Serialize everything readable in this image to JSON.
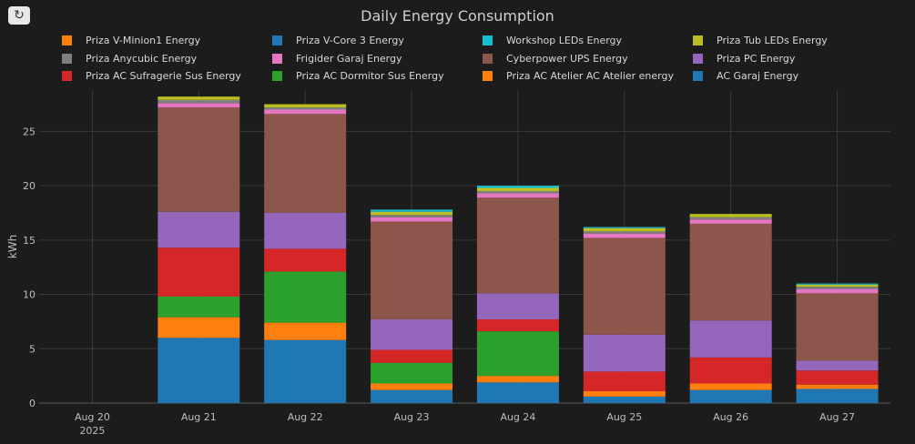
{
  "toolbar": {
    "refresh_icon": "↻"
  },
  "chart_data": {
    "type": "bar",
    "stacked": true,
    "title": "Daily Energy Consumption",
    "ylabel": "kWh",
    "xlabel": "",
    "ylim": [
      0,
      28.8
    ],
    "yticks": [
      0,
      5,
      10,
      15,
      20,
      25
    ],
    "grid": true,
    "legend_position": "top",
    "categories": [
      "Aug 20",
      "Aug 21",
      "Aug 22",
      "Aug 23",
      "Aug 24",
      "Aug 25",
      "Aug 26",
      "Aug 27"
    ],
    "category_sublabels": [
      "2025",
      "",
      "",
      "",
      "",
      "",
      "",
      ""
    ],
    "legend": [
      {
        "name": "Priza V-Minion1 Energy",
        "color": "#ff7f0e"
      },
      {
        "name": "Priza V-Core 3 Energy",
        "color": "#1f77b4"
      },
      {
        "name": "Workshop LEDs Energy",
        "color": "#17becf"
      },
      {
        "name": "Priza Tub LEDs Energy",
        "color": "#bcbd22"
      },
      {
        "name": "Priza Anycubic Energy",
        "color": "#7f7f7f"
      },
      {
        "name": "Frigider Garaj Energy",
        "color": "#e377c2"
      },
      {
        "name": "Cyberpower UPS Energy",
        "color": "#8c564b"
      },
      {
        "name": "Priza PC Energy",
        "color": "#9467bd"
      },
      {
        "name": "Priza AC Sufragerie Sus Energy",
        "color": "#d62728"
      },
      {
        "name": "Priza AC Dormitor Sus Energy",
        "color": "#2ca02c"
      },
      {
        "name": "Priza AC Atelier AC Atelier energy",
        "color": "#ff7f0e"
      },
      {
        "name": "AC Garaj Energy",
        "color": "#1f77b4"
      }
    ],
    "series": [
      {
        "name": "AC Garaj Energy",
        "color": "#1f77b4",
        "values": [
          0,
          6.0,
          5.8,
          1.2,
          1.9,
          0.6,
          1.2,
          1.3
        ]
      },
      {
        "name": "Priza AC Atelier AC Atelier energy",
        "color": "#ff7f0e",
        "values": [
          0,
          1.9,
          1.6,
          0.6,
          0.6,
          0.5,
          0.6,
          0.4
        ]
      },
      {
        "name": "Priza AC Dormitor Sus Energy",
        "color": "#2ca02c",
        "values": [
          0,
          1.9,
          4.7,
          1.9,
          4.1,
          0,
          0,
          0
        ]
      },
      {
        "name": "Priza AC Sufragerie Sus Energy",
        "color": "#d62728",
        "values": [
          0,
          4.5,
          2.1,
          1.2,
          1.1,
          1.8,
          2.4,
          1.3
        ]
      },
      {
        "name": "Priza PC Energy",
        "color": "#9467bd",
        "values": [
          0,
          3.3,
          3.3,
          2.8,
          2.4,
          3.4,
          3.4,
          0.9
        ]
      },
      {
        "name": "Cyberpower UPS Energy",
        "color": "#8c564b",
        "values": [
          0,
          9.6,
          9.1,
          9.0,
          8.8,
          8.9,
          8.9,
          6.2
        ]
      },
      {
        "name": "Frigider Garaj Energy",
        "color": "#e377c2",
        "values": [
          0,
          0.4,
          0.4,
          0.4,
          0.4,
          0.4,
          0.4,
          0.4
        ]
      },
      {
        "name": "Priza Anycubic Energy",
        "color": "#7f7f7f",
        "values": [
          0,
          0.3,
          0.2,
          0.2,
          0.2,
          0.2,
          0.2,
          0.2
        ]
      },
      {
        "name": "Priza Tub LEDs Energy",
        "color": "#bcbd22",
        "values": [
          0,
          0.3,
          0.3,
          0.3,
          0.3,
          0.3,
          0.3,
          0.2
        ]
      },
      {
        "name": "Workshop LEDs Energy",
        "color": "#17becf",
        "values": [
          0,
          0,
          0,
          0.2,
          0.2,
          0.1,
          0,
          0.1
        ]
      },
      {
        "name": "Priza V-Core 3 Energy",
        "color": "#1f77b4",
        "values": [
          0,
          0,
          0,
          0,
          0,
          0,
          0,
          0
        ]
      },
      {
        "name": "Priza V-Minion1 Energy",
        "color": "#ff7f0e",
        "values": [
          0,
          0,
          0,
          0,
          0,
          0,
          0,
          0
        ]
      }
    ]
  }
}
